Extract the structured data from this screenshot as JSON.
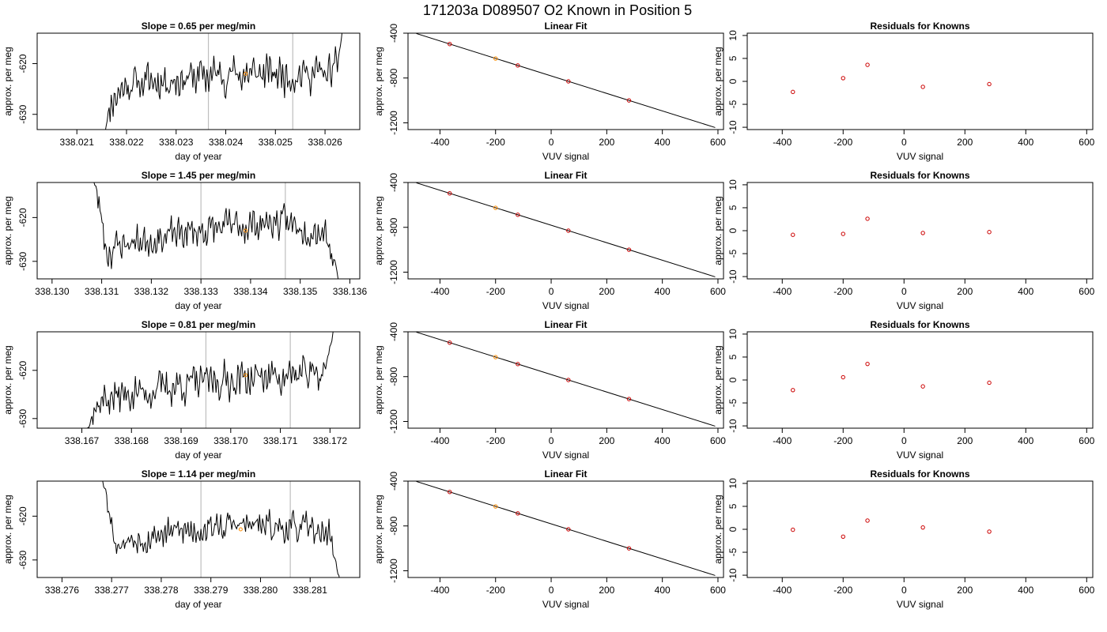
{
  "figure": {
    "title": "171203a     D089507   O2 Known in Position  5",
    "colors": {
      "trace": "#000000",
      "marker": "#ff8c00",
      "residual": "#cc0000",
      "fit_line": "#000000",
      "vline": "#bebebe",
      "frame": "#000000"
    }
  },
  "chart_data": [
    {
      "type": "line",
      "row": 0,
      "col": 0,
      "title": "Slope =  0.65  per meg/min",
      "xlabel": "day of year",
      "ylabel": "approx. per meg",
      "xlim": [
        338.0202,
        338.0267
      ],
      "ylim": [
        -633,
        -614
      ],
      "xticks": [
        338.021,
        338.022,
        338.023,
        338.024,
        338.025,
        338.026
      ],
      "yticks": [
        -620,
        -630
      ],
      "tick_decimals": 3,
      "grid": false,
      "vlines": [
        338.02365,
        338.02535
      ],
      "marker": {
        "x": 338.0244,
        "y": -622
      },
      "trace": {
        "x_start": 338.02155,
        "x_end": 338.02637,
        "steady_mean": -622,
        "noise": 2.5,
        "rise_end": -610,
        "seed": 11,
        "keypoints": [
          [
            338.02155,
            -635
          ],
          [
            338.0216,
            -631
          ],
          [
            338.0217,
            -627
          ],
          [
            338.022,
            -624
          ],
          [
            338.024,
            -622
          ],
          [
            338.0262,
            -622
          ],
          [
            338.0263,
            -617
          ],
          [
            338.02637,
            -612
          ]
        ]
      }
    },
    {
      "type": "line",
      "row": 0,
      "col": 1,
      "title": "Linear Fit",
      "xlabel": "VUV signal",
      "ylabel": "approx. per meg",
      "xlim": [
        -515,
        620
      ],
      "ylim": [
        -1260,
        -400
      ],
      "xticks": [
        -400,
        -200,
        0,
        200,
        400,
        600
      ],
      "yticks": [
        -400,
        -800,
        -1200
      ],
      "grid": false,
      "fit": {
        "x": [
          -485,
          590
        ],
        "y": [
          -403,
          -1242
        ]
      },
      "points": [
        {
          "x": -365,
          "y": -497
        },
        {
          "x": -200,
          "y": -626
        },
        {
          "x": -120,
          "y": -688
        },
        {
          "x": 62,
          "y": -830
        },
        {
          "x": 280,
          "y": -1000
        }
      ],
      "highlight_index": 1
    },
    {
      "type": "scatter",
      "row": 0,
      "col": 2,
      "title": "Residuals for Knowns",
      "xlabel": "VUV signal",
      "ylabel": "approx. per meg",
      "xlim": [
        -515,
        620
      ],
      "ylim": [
        -10.5,
        10.5
      ],
      "xticks": [
        -400,
        -200,
        0,
        200,
        400,
        600
      ],
      "yticks": [
        10,
        5,
        0,
        -5,
        -10
      ],
      "grid": false,
      "points": [
        {
          "x": -365,
          "y": -2.3
        },
        {
          "x": -200,
          "y": 0.7
        },
        {
          "x": -120,
          "y": 3.6
        },
        {
          "x": 62,
          "y": -1.2
        },
        {
          "x": 280,
          "y": -0.6
        }
      ]
    },
    {
      "type": "line",
      "row": 1,
      "col": 0,
      "title": "Slope =  1.45  per meg/min",
      "xlabel": "day of year",
      "ylabel": "approx. per meg",
      "xlim": [
        338.1297,
        338.1362
      ],
      "ylim": [
        -634,
        -612
      ],
      "xticks": [
        338.13,
        338.131,
        338.132,
        338.133,
        338.134,
        338.135,
        338.136
      ],
      "yticks": [
        -620,
        -630
      ],
      "tick_decimals": 3,
      "grid": false,
      "vlines": [
        338.133,
        338.1347
      ],
      "marker": {
        "x": 338.1339,
        "y": -623
      },
      "trace": {
        "x_start": 338.1308,
        "x_end": 338.1358,
        "steady_mean": -624,
        "noise": 2.5,
        "seed": 23,
        "keypoints": [
          [
            338.1308,
            -610
          ],
          [
            338.1309,
            -614
          ],
          [
            338.131,
            -620
          ],
          [
            338.1311,
            -628
          ],
          [
            338.1314,
            -626
          ],
          [
            338.133,
            -623
          ],
          [
            338.1345,
            -621
          ],
          [
            338.1355,
            -623
          ],
          [
            338.1357,
            -630
          ],
          [
            338.1358,
            -636
          ]
        ]
      }
    },
    {
      "type": "line",
      "row": 1,
      "col": 1,
      "title": "Linear Fit",
      "xlabel": "VUV signal",
      "ylabel": "approx. per meg",
      "xlim": [
        -515,
        620
      ],
      "ylim": [
        -1260,
        -400
      ],
      "xticks": [
        -400,
        -200,
        0,
        200,
        400,
        600
      ],
      "yticks": [
        -400,
        -800,
        -1200
      ],
      "grid": false,
      "fit": {
        "x": [
          -485,
          590
        ],
        "y": [
          -403,
          -1242
        ]
      },
      "points": [
        {
          "x": -365,
          "y": -497
        },
        {
          "x": -200,
          "y": -626
        },
        {
          "x": -120,
          "y": -688
        },
        {
          "x": 62,
          "y": -830
        },
        {
          "x": 280,
          "y": -1000
        }
      ],
      "highlight_index": 1
    },
    {
      "type": "scatter",
      "row": 1,
      "col": 2,
      "title": "Residuals for Knowns",
      "xlabel": "VUV signal",
      "ylabel": "approx. per meg",
      "xlim": [
        -515,
        620
      ],
      "ylim": [
        -10.5,
        10.5
      ],
      "xticks": [
        -400,
        -200,
        0,
        200,
        400,
        600
      ],
      "yticks": [
        10,
        5,
        0,
        -5,
        -10
      ],
      "grid": false,
      "points": [
        {
          "x": -365,
          "y": -0.9
        },
        {
          "x": -200,
          "y": -0.7
        },
        {
          "x": -120,
          "y": 2.6
        },
        {
          "x": 62,
          "y": -0.5
        },
        {
          "x": 280,
          "y": -0.3
        }
      ]
    },
    {
      "type": "line",
      "row": 2,
      "col": 0,
      "title": "Slope =  0.81  per meg/min",
      "xlabel": "day of year",
      "ylabel": "approx. per meg",
      "xlim": [
        338.1661,
        338.1726
      ],
      "ylim": [
        -632,
        -612
      ],
      "xticks": [
        338.167,
        338.168,
        338.169,
        338.17,
        338.171,
        338.172
      ],
      "yticks": [
        -620,
        -630
      ],
      "tick_decimals": 3,
      "grid": false,
      "vlines": [
        338.1695,
        338.1712
      ],
      "marker": {
        "x": 338.1703,
        "y": -621
      },
      "trace": {
        "x_start": 338.1671,
        "x_end": 338.1721,
        "steady_mean": -622,
        "noise": 2.5,
        "seed": 37,
        "keypoints": [
          [
            338.1671,
            -633
          ],
          [
            338.1672,
            -629
          ],
          [
            338.1674,
            -626
          ],
          [
            338.169,
            -623
          ],
          [
            338.171,
            -621
          ],
          [
            338.1718,
            -621
          ],
          [
            338.172,
            -616
          ],
          [
            338.1721,
            -610
          ]
        ]
      }
    },
    {
      "type": "line",
      "row": 2,
      "col": 1,
      "title": "Linear Fit",
      "xlabel": "VUV signal",
      "ylabel": "approx. per meg",
      "xlim": [
        -515,
        620
      ],
      "ylim": [
        -1260,
        -400
      ],
      "xticks": [
        -400,
        -200,
        0,
        200,
        400,
        600
      ],
      "yticks": [
        -400,
        -800,
        -1200
      ],
      "grid": false,
      "fit": {
        "x": [
          -485,
          590
        ],
        "y": [
          -403,
          -1242
        ]
      },
      "points": [
        {
          "x": -365,
          "y": -497
        },
        {
          "x": -200,
          "y": -626
        },
        {
          "x": -120,
          "y": -688
        },
        {
          "x": 62,
          "y": -830
        },
        {
          "x": 280,
          "y": -1000
        }
      ],
      "highlight_index": 1
    },
    {
      "type": "scatter",
      "row": 2,
      "col": 2,
      "title": "Residuals for Knowns",
      "xlabel": "VUV signal",
      "ylabel": "approx. per meg",
      "xlim": [
        -515,
        620
      ],
      "ylim": [
        -10.5,
        10.5
      ],
      "xticks": [
        -400,
        -200,
        0,
        200,
        400,
        600
      ],
      "yticks": [
        10,
        5,
        0,
        -5,
        -10
      ],
      "grid": false,
      "points": [
        {
          "x": -365,
          "y": -2.2
        },
        {
          "x": -200,
          "y": 0.6
        },
        {
          "x": -120,
          "y": 3.5
        },
        {
          "x": 62,
          "y": -1.4
        },
        {
          "x": 280,
          "y": -0.6
        }
      ]
    },
    {
      "type": "line",
      "row": 3,
      "col": 0,
      "title": "Slope =  1.14  per meg/min",
      "xlabel": "day of year",
      "ylabel": "approx. per meg",
      "xlim": [
        338.2755,
        338.282
      ],
      "ylim": [
        -634,
        -612
      ],
      "xticks": [
        338.276,
        338.277,
        338.278,
        338.279,
        338.28,
        338.281
      ],
      "yticks": [
        -620,
        -630
      ],
      "tick_decimals": 3,
      "grid": false,
      "vlines": [
        338.2788,
        338.2806
      ],
      "marker": {
        "x": 338.2796,
        "y": -623
      },
      "trace": {
        "x_start": 338.2768,
        "x_end": 338.2816,
        "steady_mean": -624,
        "noise": 2.2,
        "seed": 53,
        "keypoints": [
          [
            338.2768,
            -611
          ],
          [
            338.2769,
            -615
          ],
          [
            338.277,
            -622
          ],
          [
            338.2771,
            -626
          ],
          [
            338.278,
            -624
          ],
          [
            338.2795,
            -622
          ],
          [
            338.281,
            -623
          ],
          [
            338.2814,
            -624
          ],
          [
            338.2815,
            -630
          ],
          [
            338.2816,
            -635
          ]
        ]
      }
    },
    {
      "type": "line",
      "row": 3,
      "col": 1,
      "title": "Linear Fit",
      "xlabel": "VUV signal",
      "ylabel": "approx. per meg",
      "xlim": [
        -515,
        620
      ],
      "ylim": [
        -1260,
        -400
      ],
      "xticks": [
        -400,
        -200,
        0,
        200,
        400,
        600
      ],
      "yticks": [
        -400,
        -800,
        -1200
      ],
      "grid": false,
      "fit": {
        "x": [
          -485,
          590
        ],
        "y": [
          -403,
          -1242
        ]
      },
      "points": [
        {
          "x": -365,
          "y": -497
        },
        {
          "x": -200,
          "y": -626
        },
        {
          "x": -120,
          "y": -688
        },
        {
          "x": 62,
          "y": -830
        },
        {
          "x": 280,
          "y": -1000
        }
      ],
      "highlight_index": 1
    },
    {
      "type": "scatter",
      "row": 3,
      "col": 2,
      "title": "Residuals for Knowns",
      "xlabel": "VUV signal",
      "ylabel": "approx. per meg",
      "xlim": [
        -515,
        620
      ],
      "ylim": [
        -10.5,
        10.5
      ],
      "xticks": [
        -400,
        -200,
        0,
        200,
        400,
        600
      ],
      "yticks": [
        10,
        5,
        0,
        -5,
        -10
      ],
      "grid": false,
      "points": [
        {
          "x": -365,
          "y": -0.1
        },
        {
          "x": -200,
          "y": -1.6
        },
        {
          "x": -120,
          "y": 1.9
        },
        {
          "x": 62,
          "y": 0.4
        },
        {
          "x": 280,
          "y": -0.5
        }
      ]
    }
  ]
}
